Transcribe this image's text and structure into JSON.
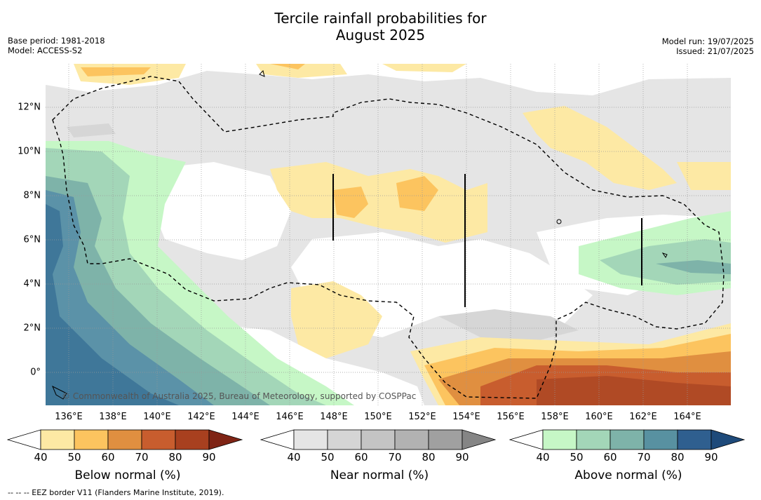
{
  "title_line1": "Tercile rainfall probabilities for",
  "title_line2": "August 2025",
  "meta_left": [
    "Base period: 1981-2018",
    "Model: ACCESS-S2"
  ],
  "meta_right": [
    "Model run: 19/07/2025",
    "Issued: 21/07/2025"
  ],
  "credit": "© Commonwealth of Australia 2025, Bureau of Meteorology, supported by COSPPac",
  "lon_labels": [
    "136°E",
    "138°E",
    "140°E",
    "142°E",
    "144°E",
    "146°E",
    "148°E",
    "150°E",
    "152°E",
    "154°E",
    "156°E",
    "158°E",
    "160°E",
    "162°E",
    "164°E"
  ],
  "lat_labels": [
    "12°N",
    "10°N",
    "8°N",
    "6°N",
    "4°N",
    "2°N",
    "0°"
  ],
  "colorbars": [
    {
      "title": "Below normal (%)",
      "ticks": [
        "40",
        "50",
        "60",
        "70",
        "80",
        "90"
      ],
      "colors": [
        "#ffffff",
        "#fde9a4",
        "#fcc45f",
        "#e08f40",
        "#c85d2e",
        "#a8401f",
        "#7f2415"
      ]
    },
    {
      "title": "Near normal (%)",
      "ticks": [
        "40",
        "50",
        "60",
        "70",
        "80",
        "90"
      ],
      "colors": [
        "#ffffff",
        "#e5e5e5",
        "#d5d5d5",
        "#c4c4c4",
        "#b2b2b2",
        "#a0a0a0",
        "#858585"
      ]
    },
    {
      "title": "Above normal (%)",
      "ticks": [
        "40",
        "50",
        "60",
        "70",
        "80",
        "90"
      ],
      "colors": [
        "#ffffff",
        "#c6f7c6",
        "#a3d6b8",
        "#7eb3a9",
        "#5891a1",
        "#2f5f8f",
        "#1e4a7a"
      ]
    }
  ],
  "footer": "-- -- -- EEZ border V11 (Flanders Marine Institute, 2019).",
  "map_colors": {
    "white": "#ffffff",
    "grey1": "#e5e5e5",
    "grey2": "#d6d6d6",
    "yel1": "#fde9a4",
    "yel2": "#fcc45f",
    "org1": "#e08f40",
    "org2": "#c85d2e",
    "org3": "#b04a25",
    "grn1": "#c6f7c6",
    "grn2": "#a3d6b8",
    "grn3": "#7eb3a9",
    "blu1": "#5b92a8",
    "blu2": "#3f7799"
  }
}
